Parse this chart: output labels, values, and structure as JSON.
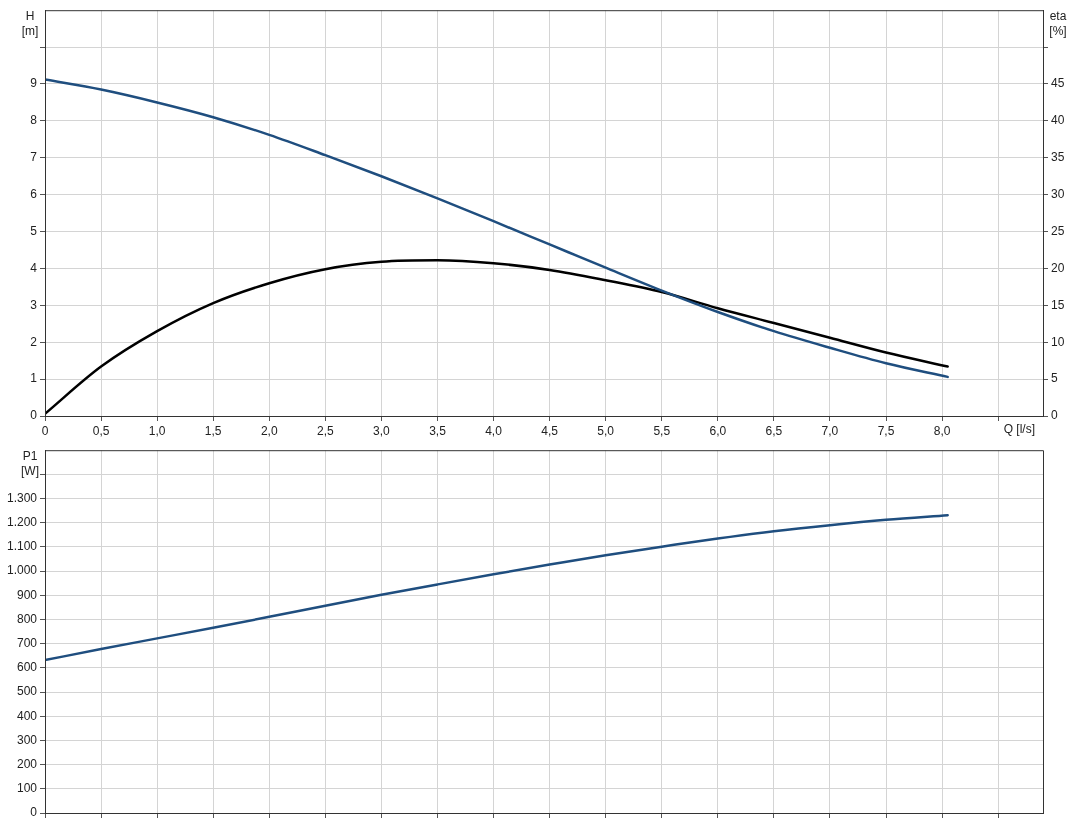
{
  "chart_data": [
    {
      "type": "line",
      "xlabel": "Q [l/s]",
      "ylabel": "H [m]",
      "y2label": "eta [%]",
      "grid": true,
      "legend": false,
      "marker": "none",
      "x": [
        0,
        0.5,
        1.0,
        1.5,
        2.0,
        2.5,
        3.0,
        3.5,
        4.0,
        4.5,
        5.0,
        5.5,
        6.0,
        6.5,
        7.0,
        7.5,
        8.05
      ],
      "xlim": [
        0,
        8.9
      ],
      "xticks": [
        0,
        {
          "value": 0.5,
          "label": "0,5"
        },
        {
          "value": 1.0,
          "label": "1,0"
        },
        {
          "value": 1.5,
          "label": "1,5"
        },
        {
          "value": 2.0,
          "label": "2,0"
        },
        {
          "value": 2.5,
          "label": "2,5"
        },
        {
          "value": 3.0,
          "label": "3,0"
        },
        {
          "value": 3.5,
          "label": "3,5"
        },
        {
          "value": 4.0,
          "label": "4,0"
        },
        {
          "value": 4.5,
          "label": "4,5"
        },
        {
          "value": 5.0,
          "label": "5,0"
        },
        {
          "value": 5.5,
          "label": "5,5"
        },
        {
          "value": 6.0,
          "label": "6,0"
        },
        {
          "value": 6.5,
          "label": "6,5"
        },
        {
          "value": 7.0,
          "label": "7,0"
        },
        {
          "value": 7.5,
          "label": "7,5"
        },
        {
          "value": 8.0,
          "label": "8,0"
        },
        {
          "value": 8.5,
          "label": null
        }
      ],
      "ylim": [
        0,
        11
      ],
      "yticks": [
        0,
        1,
        2,
        3,
        4,
        5,
        6,
        7,
        8,
        9,
        {
          "value": 10,
          "label": null
        }
      ],
      "y2lim": [
        0,
        55
      ],
      "y2ticks": [
        0,
        5,
        10,
        15,
        20,
        25,
        30,
        35,
        40,
        45,
        {
          "value": 50,
          "label": null
        }
      ],
      "series": [
        {
          "color": "#1f4e7f",
          "values": [
            9.12,
            8.85,
            8.5,
            8.1,
            7.62,
            7.07,
            6.5,
            5.9,
            5.28,
            4.65,
            4.02,
            3.4,
            2.82,
            2.3,
            1.85,
            1.43,
            1.06
          ]
        },
        {
          "color": "#000000",
          "axis": "y2",
          "values": [
            0.3,
            6.7,
            11.5,
            15.3,
            18.0,
            19.9,
            20.9,
            21.1,
            20.7,
            19.8,
            18.4,
            16.8,
            14.6,
            12.6,
            10.6,
            8.6,
            6.7
          ]
        }
      ]
    },
    {
      "type": "line",
      "ylabel": "P1 [W]",
      "grid": true,
      "legend": false,
      "marker": "none",
      "tick_labels": "y",
      "x": [
        0,
        0.5,
        1.0,
        1.5,
        2.0,
        2.5,
        3.0,
        3.5,
        4.0,
        4.5,
        5.0,
        5.5,
        6.0,
        6.5,
        7.0,
        7.5,
        8.05
      ],
      "xlim": [
        0,
        8.9
      ],
      "xticks": [
        0,
        0.5,
        1.0,
        1.5,
        2.0,
        2.5,
        3.0,
        3.5,
        4.0,
        4.5,
        5.0,
        5.5,
        6.0,
        6.5,
        7.0,
        7.5,
        8.0,
        8.5
      ],
      "ylim": [
        0,
        1500
      ],
      "yticks": [
        0,
        100,
        200,
        300,
        400,
        500,
        600,
        700,
        800,
        900,
        {
          "value": 1000,
          "label": "1.000"
        },
        {
          "value": 1100,
          "label": "1.100"
        },
        {
          "value": 1200,
          "label": "1.200"
        },
        {
          "value": 1300,
          "label": "1.300"
        },
        {
          "value": 1400,
          "label": null
        }
      ],
      "series": [
        {
          "color": "#1f4e7f",
          "values": [
            632,
            678,
            722,
            766,
            811,
            857,
            902,
            945,
            987,
            1027,
            1066,
            1101,
            1135,
            1165,
            1190,
            1212,
            1231
          ]
        }
      ]
    }
  ]
}
